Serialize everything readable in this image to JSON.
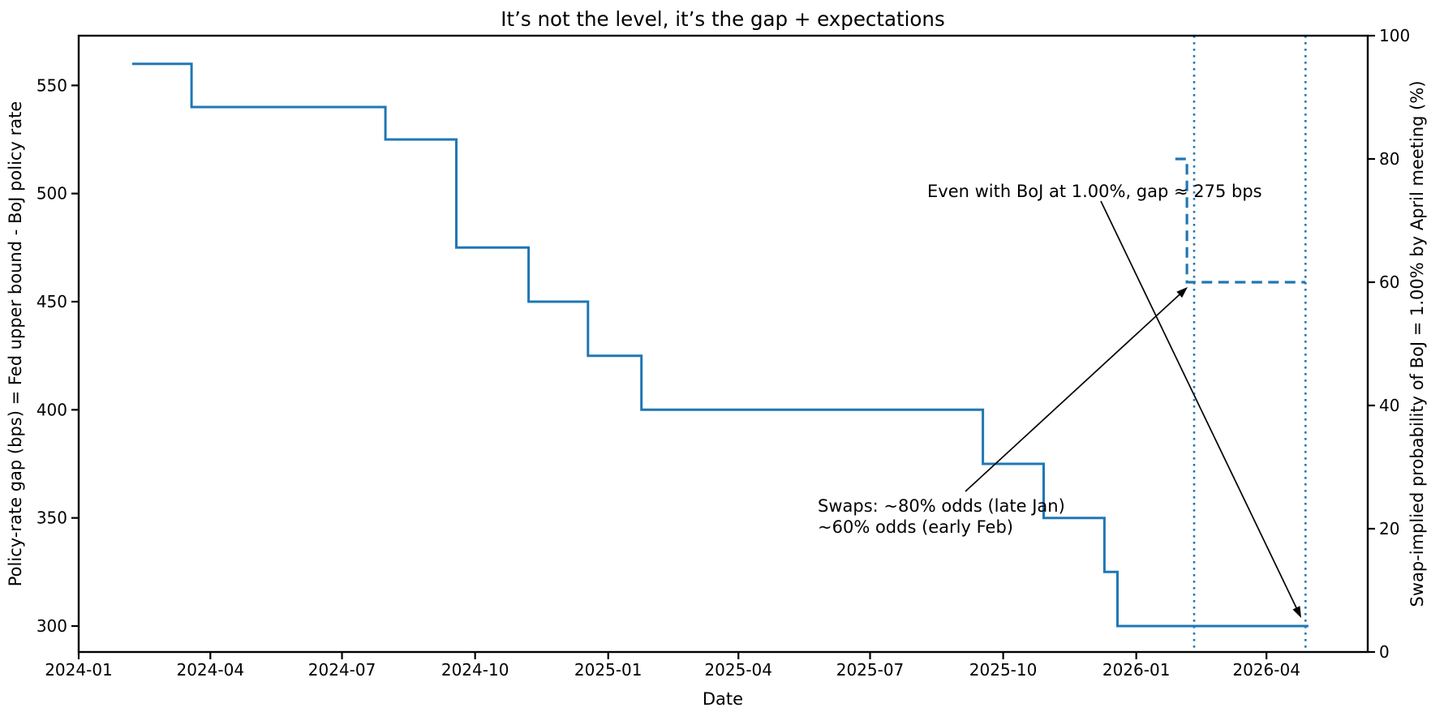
{
  "chart_data": {
    "type": "line",
    "subtype": "step-post",
    "title": "It’s not the level, it’s the gap + expectations",
    "xlabel": "Date",
    "ylabel_left": "Policy-rate gap (bps) = Fed upper bound - BoJ policy rate",
    "ylabel_right": "Swap-implied probability of BoJ = 1.00% by April meeting (%)",
    "x_domain": [
      "2024-01-01",
      "2026-06-10"
    ],
    "x_ticks": [
      {
        "date": "2024-01-01",
        "label": "2024-01"
      },
      {
        "date": "2024-04-01",
        "label": "2024-04"
      },
      {
        "date": "2024-07-01",
        "label": "2024-07"
      },
      {
        "date": "2024-10-01",
        "label": "2024-10"
      },
      {
        "date": "2025-01-01",
        "label": "2025-01"
      },
      {
        "date": "2025-04-01",
        "label": "2025-04"
      },
      {
        "date": "2025-07-01",
        "label": "2025-07"
      },
      {
        "date": "2025-10-01",
        "label": "2025-10"
      },
      {
        "date": "2026-01-01",
        "label": "2026-01"
      },
      {
        "date": "2026-04-01",
        "label": "2026-04"
      }
    ],
    "ylim_left": [
      288,
      573
    ],
    "yticks_left": [
      300,
      350,
      400,
      450,
      500,
      550
    ],
    "ylim_right": [
      0,
      100
    ],
    "yticks_right": [
      0,
      20,
      40,
      60,
      80,
      100
    ],
    "grid": false,
    "legend": null,
    "line_color": "#1f77b4",
    "series": [
      {
        "name": "policy-rate-gap-bps",
        "axis": "left",
        "style": "solid",
        "color": "#1f77b4",
        "points": [
          [
            "2024-02-07",
            560
          ],
          [
            "2024-03-19",
            540
          ],
          [
            "2024-07-31",
            525
          ],
          [
            "2024-09-18",
            475
          ],
          [
            "2024-11-07",
            450
          ],
          [
            "2024-12-18",
            425
          ],
          [
            "2025-01-24",
            400
          ],
          [
            "2025-09-17",
            375
          ],
          [
            "2025-10-29",
            350
          ],
          [
            "2025-12-10",
            325
          ],
          [
            "2025-12-19",
            300
          ],
          [
            "2026-04-30",
            300
          ]
        ]
      },
      {
        "name": "swap-implied-probability-pct",
        "axis": "right",
        "style": "dashed",
        "color": "#1f77b4",
        "points": [
          [
            "2026-01-28",
            80
          ],
          [
            "2026-02-05",
            60
          ],
          [
            "2026-04-28",
            60
          ]
        ]
      }
    ],
    "vlines": [
      {
        "date": "2026-02-10",
        "style": "dotted",
        "color": "#1f77b4"
      },
      {
        "date": "2026-04-28",
        "style": "dotted",
        "color": "#1f77b4"
      }
    ],
    "annotations": [
      {
        "name": "gap-note",
        "lines": [
          "Even with BoJ at 1.00%, gap ≈ 275 bps"
        ]
      },
      {
        "name": "swaps-note",
        "lines": [
          "Swaps: ~80% odds (late Jan)",
          "~60% odds (early Feb)"
        ]
      }
    ]
  }
}
